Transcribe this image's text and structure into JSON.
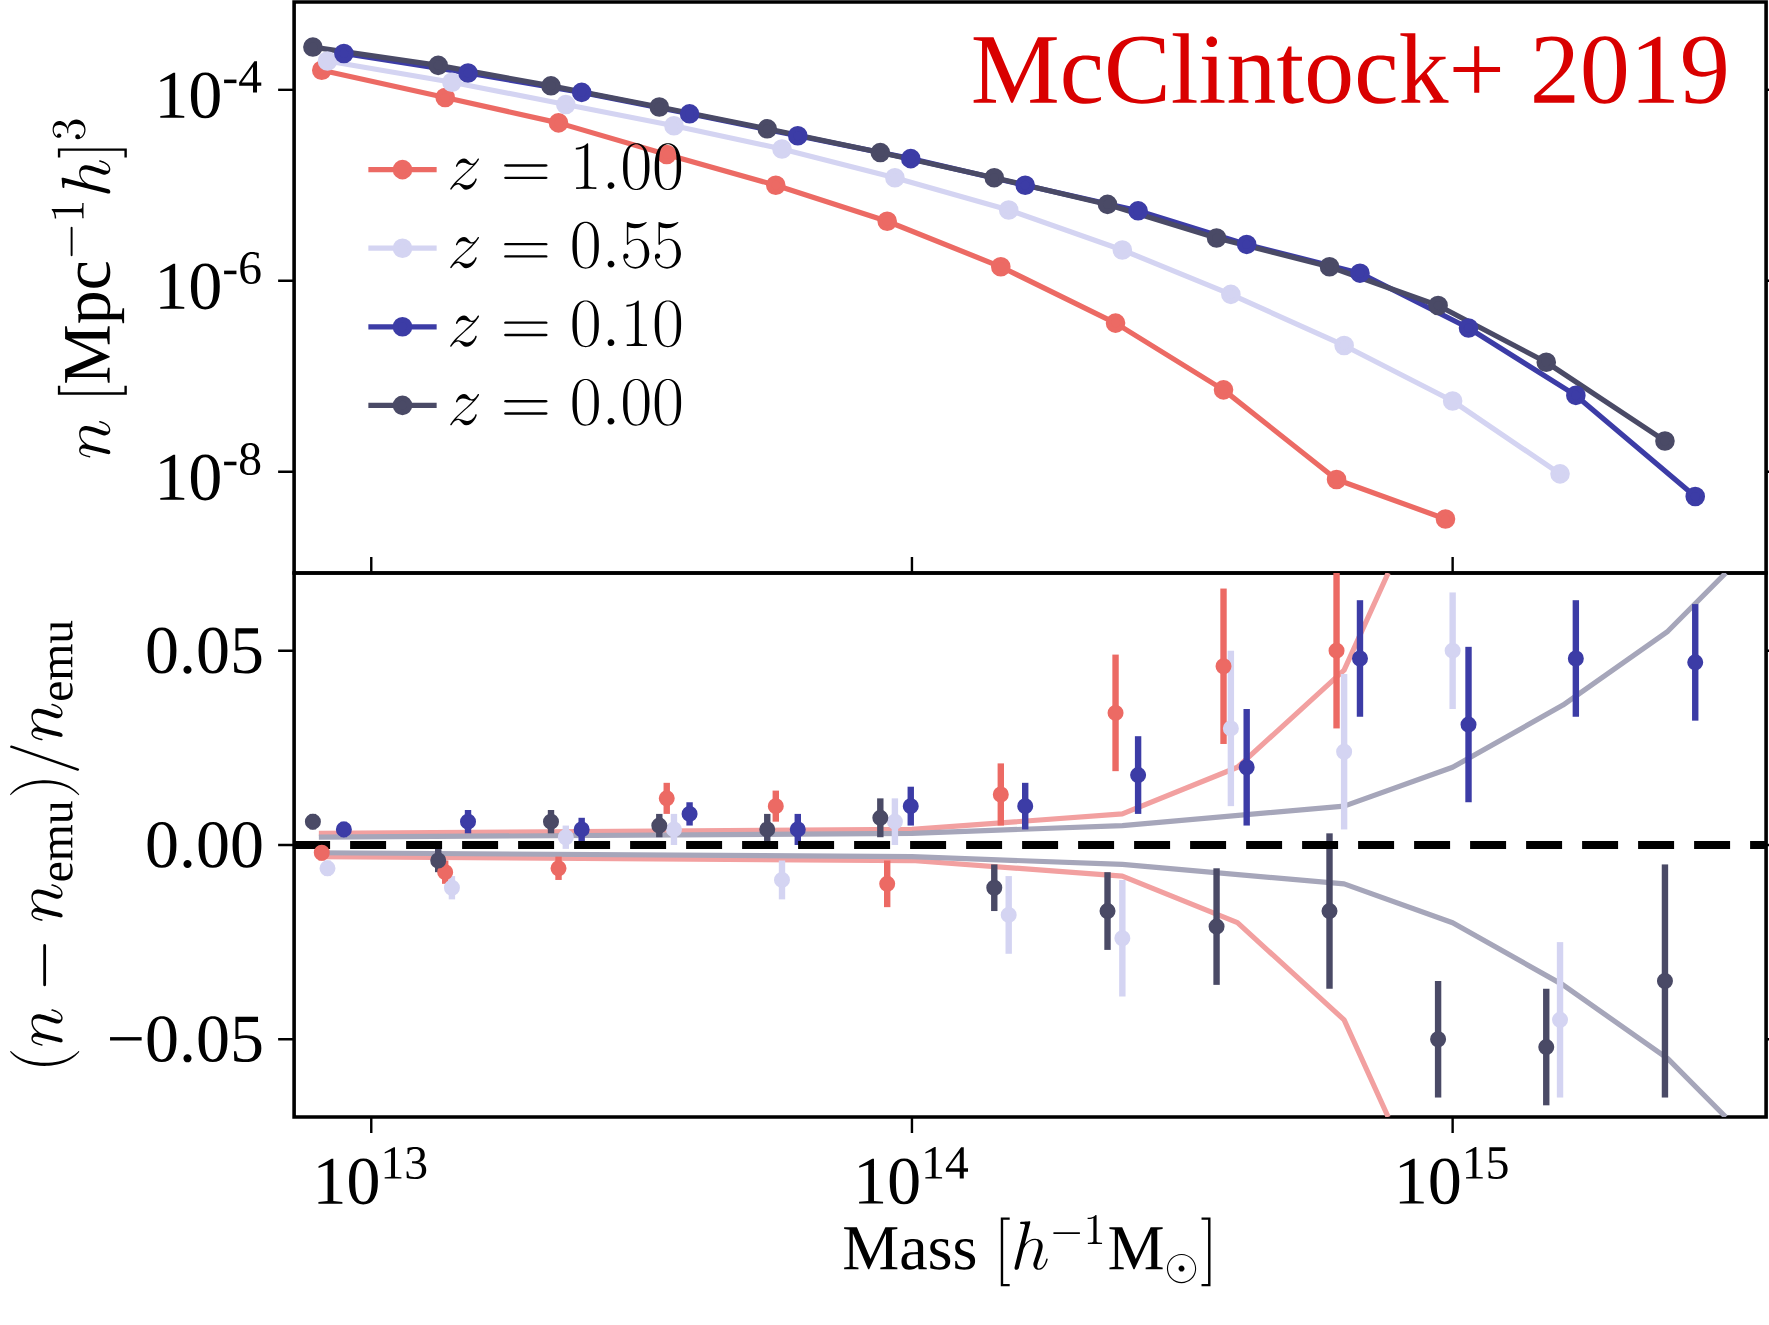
{
  "chart_data": [
    {
      "type": "line",
      "ylabel": "n\\ [\\mathrm{Mpc}^{-1}h]^3",
      "log": "xy",
      "marker": "circle",
      "legend": "left",
      "tick_labels": "y",
      "annotations": [
        "McClintock+ 2019"
      ],
      "xlim": [
        7200000000000.0,
        3800000000000000.0
      ],
      "ylim": [
        8.7e-10,
        0.00083
      ],
      "yticks": [
        {
          "value": 0.0001,
          "label": "10$^{-4}$"
        },
        {
          "value": 1e-06,
          "label": "10$^{-6}$"
        },
        {
          "value": 1e-08,
          "label": "10$^{-8}$"
        }
      ],
      "series": [
        {
          "name": "z = 1.00",
          "color": "#ec6a64",
          "x": [
            8100000000000.0,
            13700000000000.0,
            22200000000000.0,
            35200000000000.0,
            56000000000000.0,
            90000000000000.0,
            146000000000000.0,
            238000000000000.0,
            377000000000000.0,
            610000000000000.0,
            970000000000000.0
          ],
          "values": [
            0.00016,
            8.3e-05,
            4.5e-05,
            2.1e-05,
            1e-05,
            4.2e-06,
            1.4e-06,
            3.6e-07,
            7.2e-08,
            8.3e-09,
            3.2e-09
          ]
        },
        {
          "name": "z = 0.55",
          "color": "#d4d4f2",
          "x": [
            8300000000000.0,
            14100000000000.0,
            22900000000000.0,
            36300000000000.0,
            57500000000000.0,
            93000000000000.0,
            151000000000000.0,
            245000000000000.0,
            389000000000000.0,
            630000000000000.0,
            1000000000000000.0,
            1580000000000000.0
          ],
          "values": [
            0.0002,
            0.00012,
            7e-05,
            4.2e-05,
            2.4e-05,
            1.2e-05,
            5.5e-06,
            2.1e-06,
            7.2e-07,
            2.1e-07,
            5.5e-08,
            9.5e-09
          ]
        },
        {
          "name": "z = 0.10",
          "color": "#3c3ca6",
          "x": [
            8900000000000.0,
            15100000000000.0,
            24500000000000.0,
            38800000000000.0,
            61500000000000.0,
            99500000000000.0,
            162000000000000.0,
            262000000000000.0,
            416000000000000.0,
            674000000000000.0,
            1070000000000000.0,
            1690000000000000.0,
            2810000000000000.0
          ],
          "values": [
            0.00024,
            0.00015,
            9.4e-05,
            5.6e-05,
            3.3e-05,
            1.9e-05,
            1e-05,
            5.4e-06,
            2.4e-06,
            1.2e-06,
            3.2e-07,
            6.3e-08,
            5.5e-09
          ]
        },
        {
          "name": "z = 0.00",
          "color": "#4a4a66",
          "x": [
            7800000000000.0,
            13300000000000.0,
            21500000000000.0,
            34100000000000.0,
            54000000000000.0,
            87400000000000.0,
            142000000000000.0,
            230000000000000.0,
            366000000000000.0,
            592000000000000.0,
            940000000000000.0,
            1490000000000000.0,
            2470000000000000.0
          ],
          "values": [
            0.00028,
            0.00018,
            0.00011,
            6.6e-05,
            3.9e-05,
            2.2e-05,
            1.2e-05,
            6.3e-06,
            2.8e-06,
            1.4e-06,
            5.5e-07,
            1.4e-07,
            2.1e-08
          ]
        }
      ]
    },
    {
      "type": "scatter",
      "xlabel": "\\mathrm{Mass}\\ [h^{-1}\\mathrm{M}_\\odot]",
      "ylabel": "(n-n_{\\mathrm{emu}})/n_{\\mathrm{emu}}",
      "log": "x",
      "marker": "circle",
      "xlim": [
        7200000000000.0,
        3800000000000000.0
      ],
      "ylim": [
        -0.07,
        0.07
      ],
      "xticks": [
        {
          "value": 10000000000000.0,
          "label": "10$^{13}$"
        },
        {
          "value": 100000000000000.0,
          "label": "10$^{14}$"
        },
        {
          "value": 1000000000000000.0,
          "label": "10$^{15}$"
        }
      ],
      "yticks": [
        0.05,
        {
          "value": 0,
          "label": "0.00"
        },
        {
          "value": -0.05,
          "label": "−0.05"
        }
      ],
      "ref_lines": [
        {
          "axis": "y",
          "value": 0,
          "color": "#000000",
          "line_style": "dashed"
        }
      ],
      "series": [
        {
          "type": "line",
          "marker": "none",
          "color": "#f2a0a0",
          "x": [
            8000000000000.0,
            100000000000000.0,
            245000000000000.0,
            400000000000000.0,
            630000000000000.0,
            760000000000000.0
          ],
          "values": [
            0.003,
            0.004,
            0.008,
            0.02,
            0.045,
            0.07
          ]
        },
        {
          "type": "line",
          "marker": "none",
          "color": "#f2a0a0",
          "x": [
            8000000000000.0,
            100000000000000.0,
            245000000000000.0,
            400000000000000.0,
            630000000000000.0,
            760000000000000.0
          ],
          "values": [
            -0.003,
            -0.004,
            -0.008,
            -0.02,
            -0.045,
            -0.07
          ]
        },
        {
          "type": "line",
          "marker": "none",
          "color": "#a6a6ba",
          "x": [
            8000000000000.0,
            100000000000000.0,
            245000000000000.0,
            630000000000000.0,
            1000000000000000.0,
            1600000000000000.0,
            2500000000000000.0,
            3200000000000000.0
          ],
          "values": [
            0.002,
            0.003,
            0.005,
            0.01,
            0.02,
            0.036,
            0.055,
            0.07
          ]
        },
        {
          "type": "line",
          "marker": "none",
          "color": "#a6a6ba",
          "x": [
            8000000000000.0,
            100000000000000.0,
            245000000000000.0,
            630000000000000.0,
            1000000000000000.0,
            1600000000000000.0,
            2500000000000000.0,
            3200000000000000.0
          ],
          "values": [
            -0.002,
            -0.003,
            -0.005,
            -0.01,
            -0.02,
            -0.036,
            -0.055,
            -0.07
          ]
        },
        {
          "color": "#ec6a64",
          "x": [
            8100000000000.0,
            13700000000000.0,
            22200000000000.0,
            35200000000000.0,
            56000000000000.0,
            90000000000000.0,
            146000000000000.0,
            238000000000000.0,
            377000000000000.0,
            610000000000000.0
          ],
          "values": [
            -0.002,
            -0.007,
            -0.006,
            0.012,
            0.01,
            -0.01,
            0.013,
            0.034,
            0.046,
            0.05
          ],
          "errors": [
            0.002,
            0.003,
            0.003,
            0.004,
            0.004,
            0.006,
            0.008,
            0.015,
            0.02,
            0.02
          ]
        },
        {
          "color": "#d4d4f2",
          "x": [
            8300000000000.0,
            14100000000000.0,
            22900000000000.0,
            36300000000000.0,
            57500000000000.0,
            93000000000000.0,
            151000000000000.0,
            245000000000000.0,
            389000000000000.0,
            630000000000000.0,
            1000000000000000.0,
            1580000000000000.0
          ],
          "values": [
            -0.006,
            -0.011,
            0.002,
            0.004,
            -0.009,
            0.006,
            -0.018,
            -0.024,
            0.03,
            0.024,
            0.05,
            -0.045
          ],
          "errors": [
            0.002,
            0.003,
            0.003,
            0.004,
            0.005,
            0.006,
            0.01,
            0.015,
            0.02,
            0.02,
            0.015,
            0.02
          ]
        },
        {
          "color": "#3c3ca6",
          "x": [
            8900000000000.0,
            15100000000000.0,
            24500000000000.0,
            38800000000000.0,
            61500000000000.0,
            99500000000000.0,
            162000000000000.0,
            262000000000000.0,
            416000000000000.0,
            674000000000000.0,
            1070000000000000.0,
            1690000000000000.0,
            2810000000000000.0
          ],
          "values": [
            0.004,
            0.006,
            0.004,
            0.008,
            0.004,
            0.01,
            0.01,
            0.018,
            0.02,
            0.048,
            0.031,
            0.048,
            0.047
          ],
          "errors": [
            0.002,
            0.003,
            0.003,
            0.003,
            0.004,
            0.005,
            0.006,
            0.01,
            0.015,
            0.015,
            0.02,
            0.015,
            0.015
          ]
        },
        {
          "color": "#4a4a66",
          "x": [
            7800000000000.0,
            13300000000000.0,
            21500000000000.0,
            34100000000000.0,
            54000000000000.0,
            87400000000000.0,
            142000000000000.0,
            230000000000000.0,
            366000000000000.0,
            592000000000000.0,
            940000000000000.0,
            1490000000000000.0,
            2470000000000000.0
          ],
          "values": [
            0.006,
            -0.004,
            0.006,
            0.005,
            0.004,
            0.007,
            -0.011,
            -0.017,
            -0.021,
            -0.017,
            -0.05,
            -0.052,
            -0.035
          ],
          "errors": [
            0.002,
            0.003,
            0.003,
            0.003,
            0.004,
            0.005,
            0.006,
            0.01,
            0.015,
            0.02,
            0.015,
            0.015,
            0.03
          ]
        }
      ]
    }
  ]
}
